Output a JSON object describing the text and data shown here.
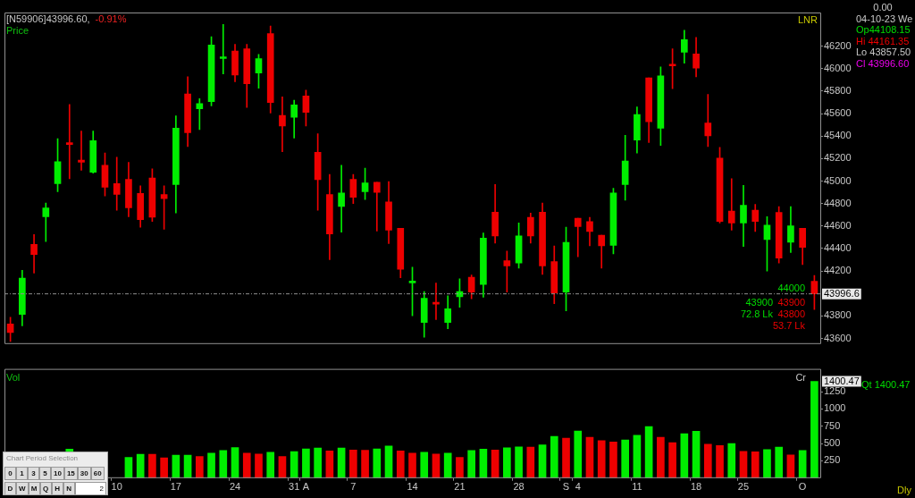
{
  "chart_data": [
    {
      "type": "candlestick",
      "title": "[N59906]43996.60,",
      "subtitle": "-0.91%",
      "ylabel": "Price",
      "categories": [
        null,
        null,
        null,
        null,
        null,
        null,
        null,
        null,
        null,
        null,
        null,
        null,
        null,
        null,
        null,
        null,
        null,
        null,
        null,
        null,
        null,
        null,
        null,
        null,
        null,
        null,
        null,
        null,
        null,
        null,
        null,
        null,
        null,
        null,
        null,
        null,
        null,
        null,
        null,
        null,
        null,
        null,
        null,
        null,
        null,
        null,
        null,
        null,
        null,
        null,
        null,
        null,
        null,
        null,
        null,
        null,
        null,
        null,
        null,
        null,
        null,
        null,
        null,
        null,
        null,
        null,
        null,
        null,
        null
      ],
      "ohlc": [
        [
          43729,
          43788,
          43572,
          43653
        ],
        [
          43813,
          44207,
          43712,
          44136
        ],
        [
          44436,
          44525,
          44182,
          44347
        ],
        [
          44683,
          44805,
          44462,
          44762
        ],
        [
          44978,
          45377,
          44906,
          45173
        ],
        [
          45335,
          45682,
          45021,
          45325
        ],
        [
          45186,
          45445,
          45097,
          45168
        ],
        [
          45079,
          45445,
          45070,
          45359
        ],
        [
          45140,
          45250,
          44868,
          44945
        ],
        [
          44978,
          45212,
          44741,
          44881
        ],
        [
          45016,
          45166,
          44683,
          44762
        ],
        [
          44891,
          44957,
          44589,
          44657
        ],
        [
          45028,
          45110,
          44640,
          44678
        ],
        [
          44881,
          44957,
          44571,
          44843
        ],
        [
          44970,
          45580,
          44716,
          45471
        ],
        [
          45776,
          45928,
          45308,
          45430
        ],
        [
          45644,
          45733,
          45458,
          45689
        ],
        [
          45707,
          46284,
          45669,
          46211
        ],
        [
          46090,
          46394,
          45954,
          46100
        ],
        [
          46157,
          46216,
          45885,
          45944
        ],
        [
          46177,
          46216,
          45656,
          45867
        ],
        [
          45961,
          46127,
          45827,
          46089
        ],
        [
          46312,
          46381,
          45606,
          45700
        ],
        [
          45585,
          45750,
          45262,
          45491
        ],
        [
          45567,
          45720,
          45382,
          45677
        ],
        [
          45758,
          45809,
          45491,
          45611
        ],
        [
          45257,
          45422,
          44741,
          45013
        ],
        [
          44881,
          45059,
          44301,
          44530
        ],
        [
          44774,
          45140,
          44545,
          44894
        ],
        [
          45016,
          45059,
          44800,
          44856
        ],
        [
          44906,
          45115,
          44835,
          44983
        ],
        [
          44990,
          44990,
          44556,
          44899
        ],
        [
          44815,
          44995,
          44444,
          44563
        ],
        [
          44581,
          44581,
          44139,
          44215
        ],
        [
          44095,
          44233,
          43801,
          44105
        ],
        [
          43742,
          44017,
          43610,
          43958
        ],
        [
          43915,
          44093,
          43768,
          43905
        ],
        [
          43742,
          43979,
          43686,
          43864
        ],
        [
          43971,
          44131,
          43877,
          44017
        ],
        [
          44144,
          44164,
          43953,
          44012
        ],
        [
          44080,
          44538,
          43966,
          44492
        ],
        [
          44723,
          44970,
          44449,
          44512
        ],
        [
          44291,
          44378,
          44012,
          44245
        ],
        [
          44271,
          44627,
          44225,
          44512
        ],
        [
          44678,
          44716,
          44449,
          44512
        ],
        [
          44723,
          44805,
          44169,
          44245
        ],
        [
          44284,
          44423,
          43910,
          44004
        ],
        [
          44012,
          44589,
          43846,
          44454
        ],
        [
          44670,
          44670,
          44327,
          44596
        ],
        [
          44640,
          44678,
          44424,
          44551
        ],
        [
          44518,
          44518,
          44225,
          44424
        ],
        [
          44429,
          44937,
          44352,
          44894
        ],
        [
          44970,
          45407,
          44830,
          45178
        ],
        [
          45364,
          45661,
          45250,
          45593
        ],
        [
          45918,
          45918,
          45344,
          45529
        ],
        [
          45471,
          46017,
          45318,
          45936
        ],
        [
          46035,
          46177,
          45822,
          46025
        ],
        [
          46147,
          46343,
          46050,
          46259
        ],
        [
          46132,
          46279,
          45928,
          46005
        ],
        [
          45517,
          45771,
          45308,
          45402
        ],
        [
          45204,
          45300,
          44627,
          44640
        ],
        [
          44734,
          45021,
          44563,
          44627
        ],
        [
          44627,
          44962,
          44418,
          44784
        ],
        [
          44741,
          44792,
          44551,
          44640
        ],
        [
          44479,
          44683,
          44200,
          44607
        ],
        [
          44721,
          44772,
          44271,
          44314
        ],
        [
          44457,
          44772,
          44365,
          44601
        ],
        [
          44581,
          44581,
          44258,
          44411
        ],
        [
          44108.15,
          44161.35,
          43857.5,
          43996.6
        ]
      ],
      "colors": [
        "#ee0000",
        "#00ee00",
        "#ee0000",
        "#00ee00",
        "#00ee00",
        "#ee0000",
        "#ee0000",
        "#00ee00",
        "#ee0000",
        "#ee0000",
        "#ee0000",
        "#ee0000",
        "#ee0000",
        "#ee0000",
        "#00ee00",
        "#ee0000",
        "#00ee00",
        "#00ee00",
        "#00ee00",
        "#ee0000",
        "#ee0000",
        "#00ee00",
        "#ee0000",
        "#ee0000",
        "#00ee00",
        "#ee0000",
        "#ee0000",
        "#ee0000",
        "#00ee00",
        "#ee0000",
        "#00ee00",
        "#ee0000",
        "#ee0000",
        "#ee0000",
        "#00ee00",
        "#00ee00",
        "#ee0000",
        "#00ee00",
        "#00ee00",
        "#ee0000",
        "#00ee00",
        "#ee0000",
        "#ee0000",
        "#00ee00",
        "#ee0000",
        "#ee0000",
        "#ee0000",
        "#00ee00",
        "#ee0000",
        "#ee0000",
        "#ee0000",
        "#00ee00",
        "#00ee00",
        "#00ee00",
        "#ee0000",
        "#00ee00",
        "#ee0000",
        "#00ee00",
        "#ee0000",
        "#ee0000",
        "#ee0000",
        "#ee0000",
        "#00ee00",
        "#ee0000",
        "#00ee00",
        "#ee0000",
        "#00ee00",
        "#ee0000",
        "#ee0000"
      ],
      "ylim": [
        43550,
        46500
      ],
      "yticks": [
        43600,
        43800,
        44200,
        44400,
        44600,
        44800,
        45000,
        45200,
        45400,
        45600,
        45800,
        46000,
        46200
      ],
      "grid": false,
      "legend": false,
      "ref_lines": [
        {
          "axis": "y",
          "value": 43996.6,
          "label": "43996.6",
          "color": "#909090",
          "line_style": "dashed"
        }
      ],
      "annotations": [
        "LNR",
        "0.00",
        "04-10-23 We",
        "Op44108.15",
        "Hi 44161.35",
        "Lo 43857.50",
        "Cl 43996.60",
        "44000",
        "43900",
        "43900",
        "72.8 Lk",
        "43800",
        "53.7 Lk"
      ]
    },
    {
      "type": "bar",
      "ylabel": "Vol",
      "categories": [
        null,
        null,
        null,
        null,
        null,
        null,
        null,
        null,
        null,
        "10",
        null,
        null,
        null,
        null,
        "17",
        null,
        null,
        null,
        null,
        "24",
        null,
        null,
        null,
        null,
        "31",
        "A",
        null,
        null,
        null,
        "7",
        null,
        null,
        null,
        null,
        "14",
        null,
        null,
        null,
        "21",
        null,
        null,
        null,
        null,
        "28",
        null,
        null,
        null,
        "S",
        "4",
        null,
        null,
        null,
        null,
        "11",
        null,
        null,
        null,
        null,
        "18",
        null,
        null,
        null,
        "25",
        null,
        null,
        null,
        null,
        "O",
        null
      ],
      "values": [
        null,
        null,
        null,
        null,
        null,
        420,
        null,
        null,
        null,
        null,
        301,
        345,
        345,
        294,
        333,
        333,
        313,
        361,
        401,
        444,
        361,
        349,
        373,
        313,
        385,
        424,
        436,
        393,
        436,
        408,
        405,
        424,
        464,
        393,
        361,
        373,
        349,
        361,
        301,
        401,
        420,
        408,
        440,
        452,
        448,
        480,
        603,
        579,
        682,
        591,
        543,
        524,
        551,
        619,
        746,
        591,
        512,
        643,
        678,
        492,
        472,
        500,
        389,
        381,
        413,
        448,
        337,
        401,
        1400.47
      ],
      "colors": [
        null,
        null,
        null,
        null,
        null,
        "#00ee00",
        null,
        null,
        null,
        null,
        "#00ee00",
        "#00ee00",
        "#ee0000",
        "#ee0000",
        "#00ee00",
        "#00ee00",
        "#ee0000",
        "#00ee00",
        "#00ee00",
        "#00ee00",
        "#ee0000",
        "#ee0000",
        "#00ee00",
        "#ee0000",
        "#00ee00",
        "#00ee00",
        "#00ee00",
        "#ee0000",
        "#00ee00",
        "#ee0000",
        "#ee0000",
        "#00ee00",
        "#00ee00",
        "#ee0000",
        "#ee0000",
        "#00ee00",
        "#ee0000",
        "#00ee00",
        "#ee0000",
        "#00ee00",
        "#00ee00",
        "#ee0000",
        "#00ee00",
        "#00ee00",
        "#ee0000",
        "#00ee00",
        "#00ee00",
        "#ee0000",
        "#00ee00",
        "#ee0000",
        "#ee0000",
        "#ee0000",
        "#00ee00",
        "#00ee00",
        "#00ee00",
        "#ee0000",
        "#ee0000",
        "#00ee00",
        "#00ee00",
        "#ee0000",
        "#ee0000",
        "#00ee00",
        "#ee0000",
        "#ee0000",
        "#00ee00",
        "#00ee00",
        "#ee0000",
        "#00ee00",
        "#00ee00"
      ],
      "ylim": [
        0,
        1580
      ],
      "yticks": [
        250,
        500,
        750,
        1000,
        1250
      ],
      "grid": false,
      "legend": false,
      "annotations": [
        "Cr",
        "Dly",
        "1400.47",
        "Qt 1400.47",
        "Chart Period Selection",
        "0",
        "1",
        "3",
        "5",
        "10",
        "15",
        "30",
        "60",
        "D",
        "W",
        "M",
        "Q",
        "H",
        "N",
        "2"
      ]
    }
  ]
}
